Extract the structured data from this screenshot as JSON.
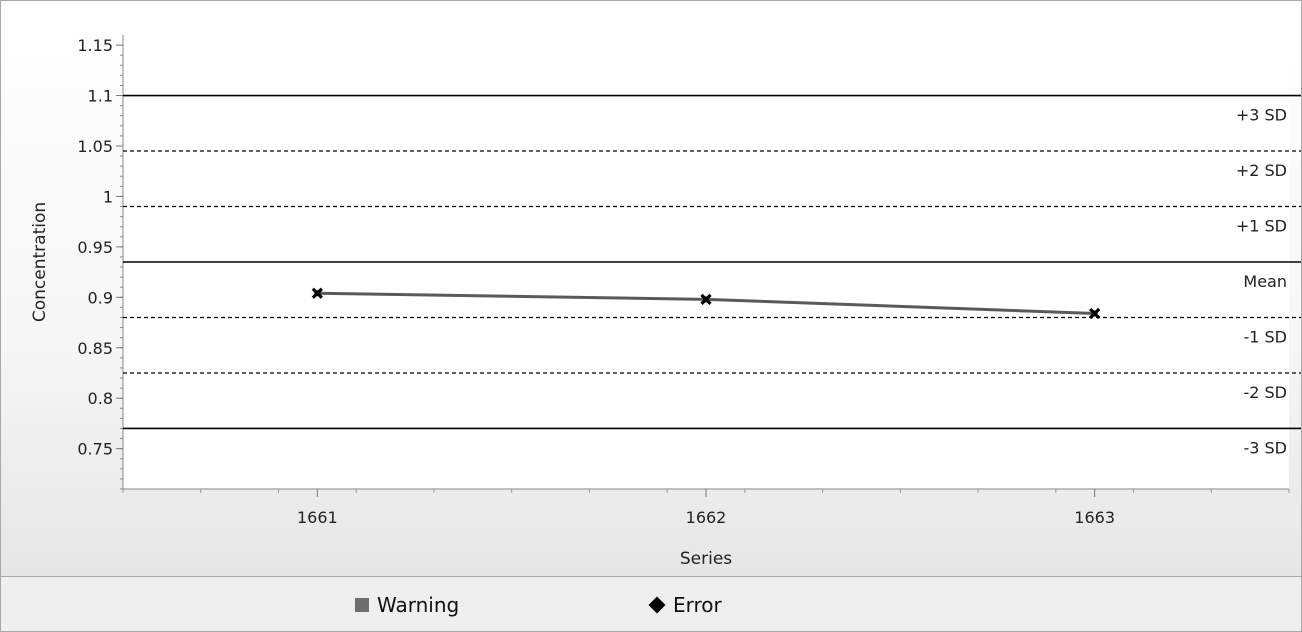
{
  "chart_data": {
    "type": "line",
    "xlabel": "Series",
    "ylabel": "Concentration",
    "categories": [
      "1661",
      "1662",
      "1663"
    ],
    "series": [
      {
        "values": [
          0.904,
          0.898,
          0.884
        ]
      }
    ],
    "ylim": [
      0.71,
      1.16
    ],
    "yticks": [
      "1.15",
      "1.1",
      "1.05",
      "1",
      "0.95",
      "0.9",
      "0.85",
      "0.8",
      "0.75"
    ],
    "ytick_values": [
      1.15,
      1.1,
      1.05,
      1.0,
      0.95,
      0.9,
      0.85,
      0.8,
      0.75
    ],
    "reference_lines": [
      {
        "label": "+3 SD",
        "value": 1.1,
        "style": "solid"
      },
      {
        "label": "+2 SD",
        "value": 1.045,
        "style": "dashed"
      },
      {
        "label": "+1 SD",
        "value": 0.99,
        "style": "dashed"
      },
      {
        "label": "Mean",
        "value": 0.935,
        "style": "solid"
      },
      {
        "label": "-1 SD",
        "value": 0.88,
        "style": "dashed"
      },
      {
        "label": "-2 SD",
        "value": 0.825,
        "style": "dashed"
      },
      {
        "label": "-3 SD",
        "value": 0.77,
        "style": "solid"
      }
    ],
    "grid": false
  },
  "legend": {
    "items": [
      {
        "label": "Warning",
        "color": "#6e6e6e",
        "shape": "square"
      },
      {
        "label": "Error",
        "color": "#000000",
        "shape": "diamond"
      }
    ]
  }
}
